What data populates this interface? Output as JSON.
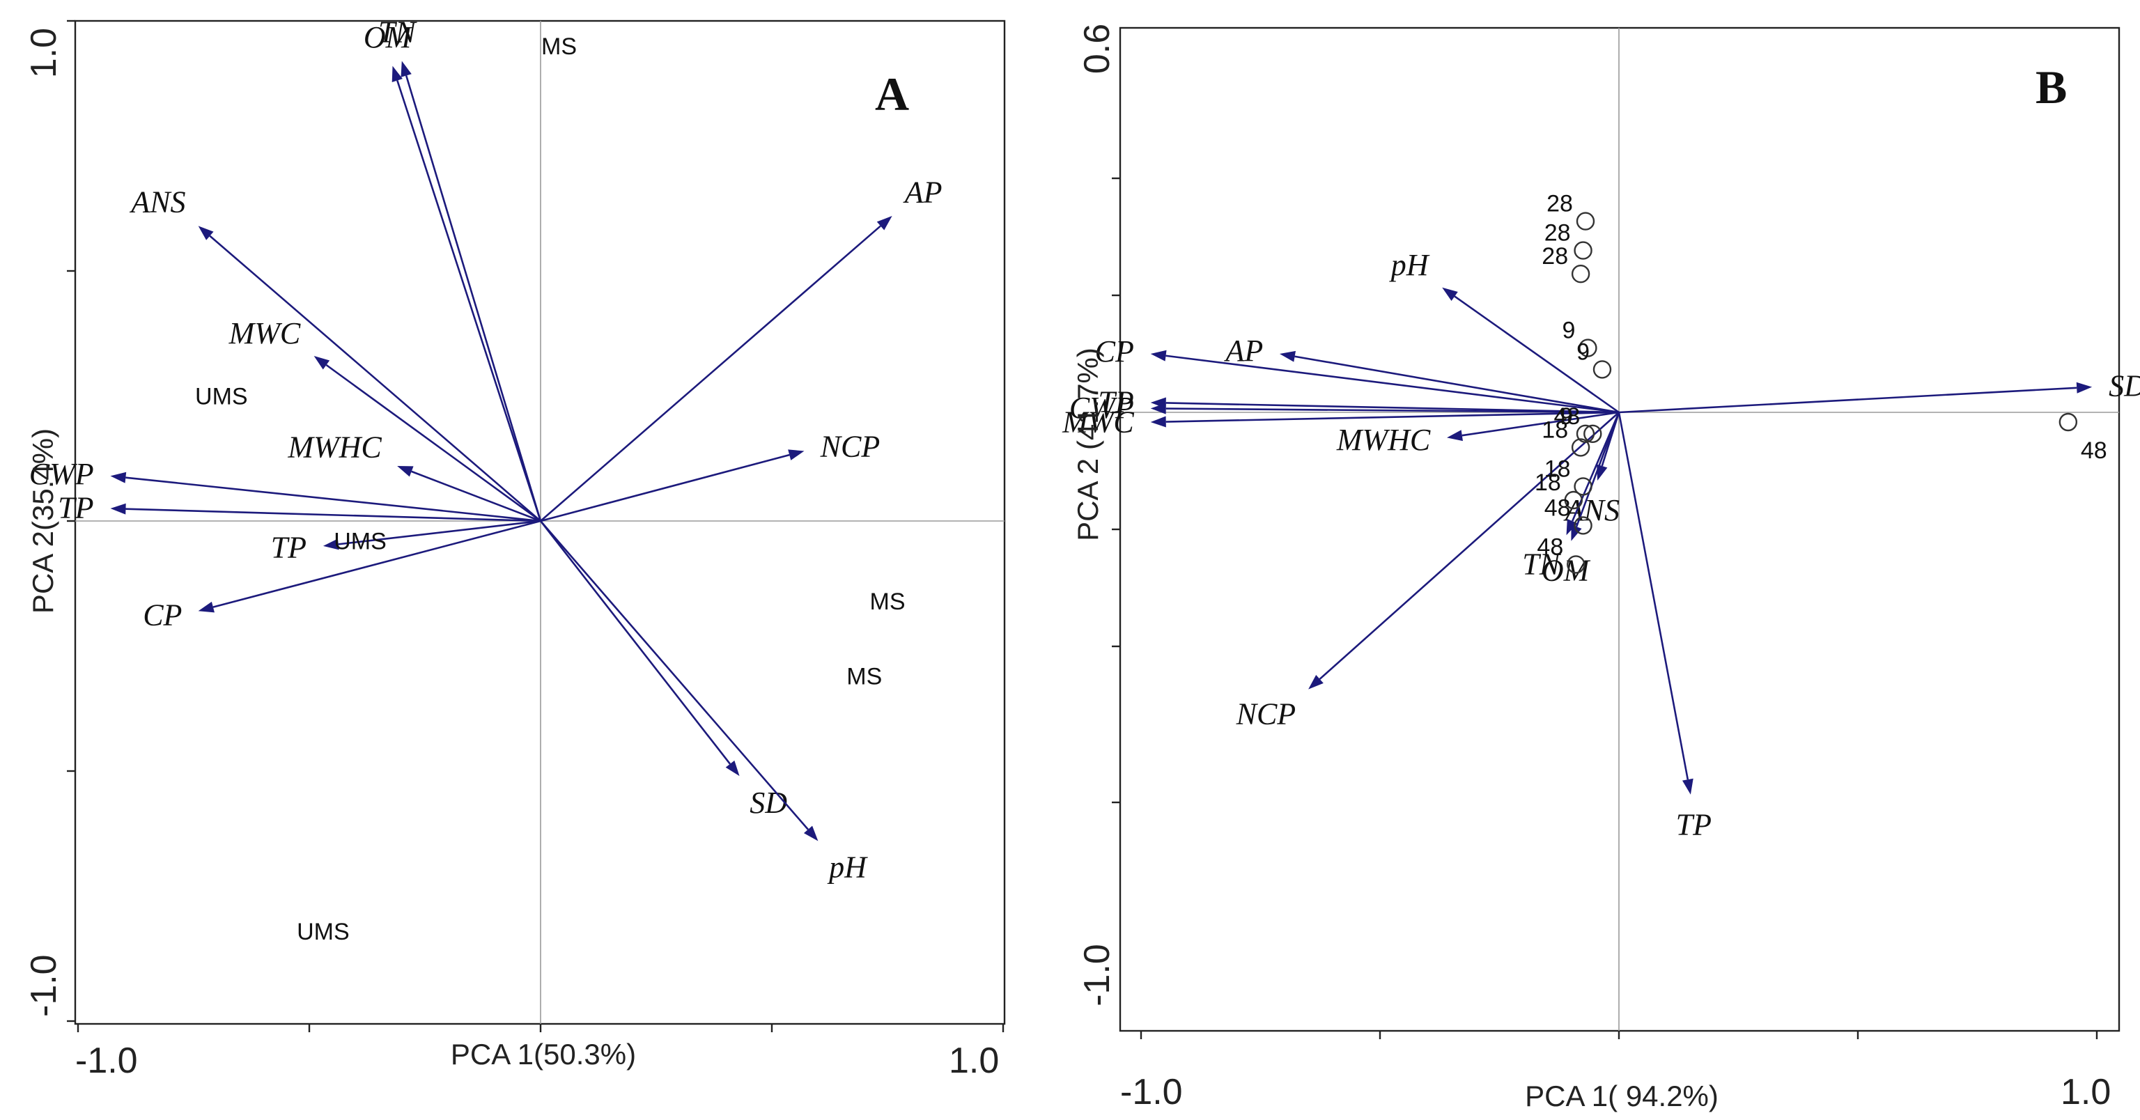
{
  "colors": {
    "vector": "#1c1a7c",
    "frame": "#222222",
    "guide": "#9a9a9a",
    "text": "#111111"
  },
  "chart_data": [
    {
      "type": "scatter",
      "panel": "A",
      "xlabel": "PCA 1(50.3%)",
      "ylabel": "PCA 2(35.4%)",
      "xlim": [
        -1.0,
        1.0
      ],
      "ylim": [
        -1.0,
        1.0
      ],
      "x_tick_labels": [
        "-1.0",
        "1.0"
      ],
      "y_tick_labels": [
        "1.0",
        "-1.0"
      ],
      "vectors": [
        {
          "label": "OM",
          "x": -0.32,
          "y": 0.91
        },
        {
          "label": "TN",
          "x": -0.3,
          "y": 0.92
        },
        {
          "label": "ANS",
          "x": -0.74,
          "y": 0.59
        },
        {
          "label": "MWC",
          "x": -0.49,
          "y": 0.33
        },
        {
          "label": "MWHC",
          "x": -0.31,
          "y": 0.11
        },
        {
          "label": "CWP",
          "x": -0.93,
          "y": 0.09
        },
        {
          "label": "TP",
          "x": -0.93,
          "y": 0.025
        },
        {
          "label": "TP",
          "x": -0.47,
          "y": -0.05
        },
        {
          "label": "CP",
          "x": -0.74,
          "y": -0.18
        },
        {
          "label": "AP",
          "x": 0.76,
          "y": 0.61
        },
        {
          "label": "NCP",
          "x": 0.57,
          "y": 0.14
        },
        {
          "label": "SD",
          "x": 0.43,
          "y": -0.51
        },
        {
          "label": "pH",
          "x": 0.6,
          "y": -0.64
        }
      ],
      "sites": [
        {
          "label": "MS",
          "x": 0.04,
          "y": 0.95
        },
        {
          "label": "UMS",
          "x": -0.69,
          "y": 0.25
        },
        {
          "label": "UMS",
          "x": -0.39,
          "y": -0.04
        },
        {
          "label": "MS",
          "x": 0.75,
          "y": -0.16
        },
        {
          "label": "MS",
          "x": 0.7,
          "y": -0.31
        },
        {
          "label": "UMS",
          "x": -0.47,
          "y": -0.82
        }
      ]
    },
    {
      "type": "scatter",
      "panel": "B",
      "xlabel": "PCA 1( 94.2%)",
      "ylabel": "PCA 2 (41.7%)",
      "xlim": [
        -1.0,
        1.0
      ],
      "ylim": [
        -1.0,
        0.6
      ],
      "x_tick_labels": [
        "-1.0",
        "1.0"
      ],
      "y_tick_labels": [
        "0.6",
        "-1.0"
      ],
      "vectors": [
        {
          "label": "pH",
          "x": -0.37,
          "y": 0.32
        },
        {
          "label": "CP",
          "x": -0.98,
          "y": 0.15
        },
        {
          "label": "AP",
          "x": -0.71,
          "y": 0.15
        },
        {
          "label": "TP",
          "x": -0.98,
          "y": 0.025
        },
        {
          "label": "CWP",
          "x": -0.98,
          "y": 0.01
        },
        {
          "label": "MWC",
          "x": -0.98,
          "y": -0.025
        },
        {
          "label": "MWHC",
          "x": -0.36,
          "y": -0.065
        },
        {
          "label": "ANS",
          "x": -0.045,
          "y": -0.175
        },
        {
          "label": "TN",
          "x": -0.11,
          "y": -0.315
        },
        {
          "label": "OM",
          "x": -0.1,
          "y": -0.33
        },
        {
          "label": "NCP",
          "x": -0.65,
          "y": -0.71
        },
        {
          "label": "TP",
          "x": 0.15,
          "y": -0.98
        },
        {
          "label": "SD",
          "x": 0.99,
          "y": 0.065
        }
      ],
      "samples": [
        {
          "label": "28",
          "x": -0.07,
          "y": 0.49
        },
        {
          "label": "28",
          "x": -0.075,
          "y": 0.415
        },
        {
          "label": "28",
          "x": -0.08,
          "y": 0.355
        },
        {
          "label": "9",
          "x": -0.065,
          "y": 0.165
        },
        {
          "label": "9",
          "x": -0.035,
          "y": 0.11
        },
        {
          "label": "9",
          "x": -0.07,
          "y": -0.055
        },
        {
          "label": "48",
          "x": -0.055,
          "y": -0.055
        },
        {
          "label": "18",
          "x": -0.08,
          "y": -0.09
        },
        {
          "label": "18",
          "x": -0.075,
          "y": -0.19
        },
        {
          "label": "18",
          "x": -0.095,
          "y": -0.225
        },
        {
          "label": "48",
          "x": -0.075,
          "y": -0.29
        },
        {
          "label": "48",
          "x": -0.09,
          "y": -0.39
        },
        {
          "label": "48",
          "x": 0.94,
          "y": -0.025
        }
      ]
    }
  ]
}
